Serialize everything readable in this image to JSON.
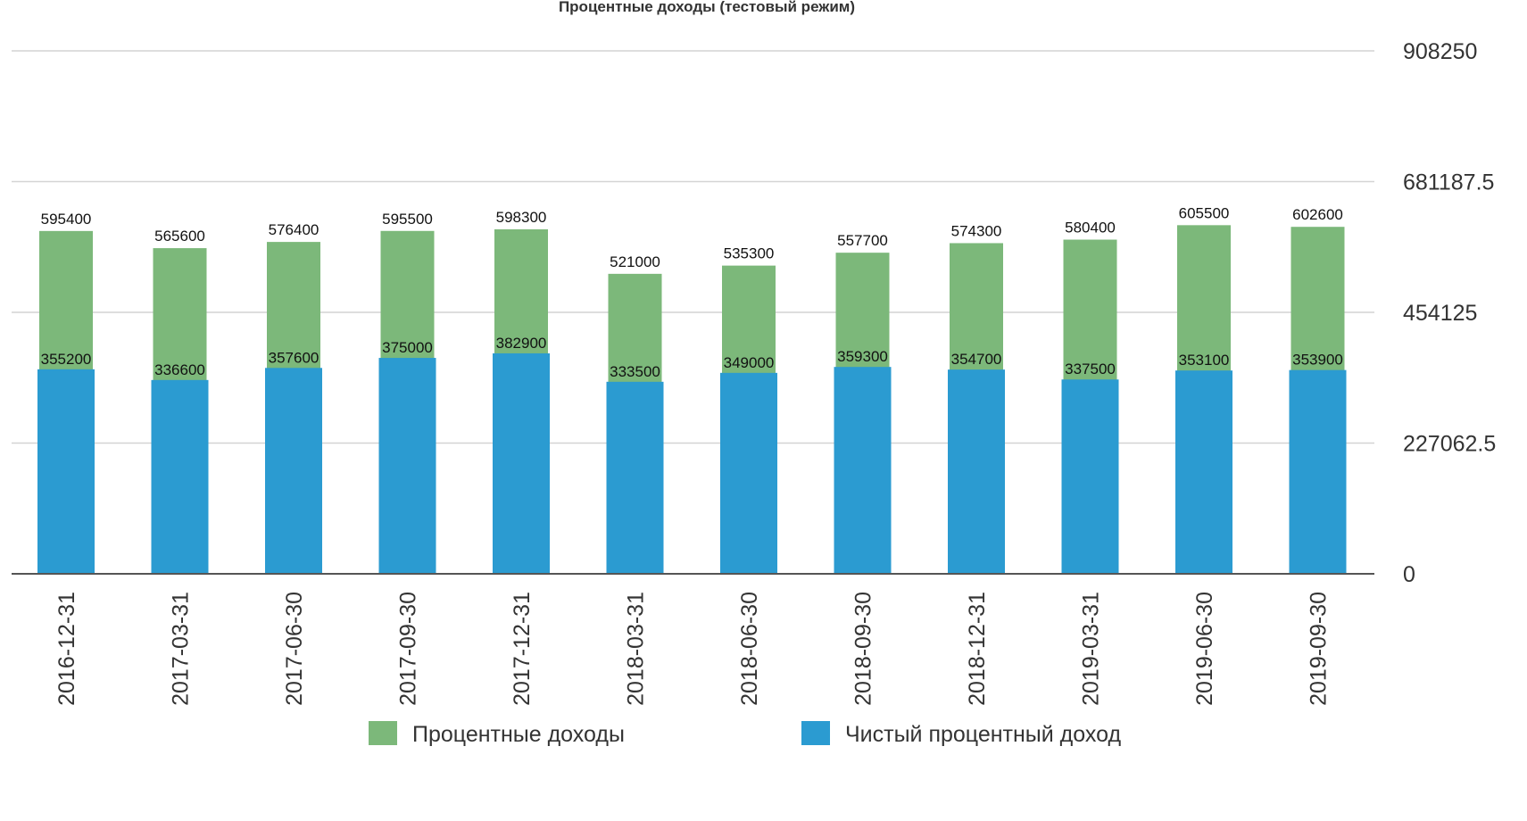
{
  "chart_data": {
    "type": "bar",
    "title": "Процентные доходы (тестовый режим)",
    "categories": [
      "2016-12-31",
      "2017-03-31",
      "2017-06-30",
      "2017-09-30",
      "2017-12-31",
      "2018-03-31",
      "2018-06-30",
      "2018-09-30",
      "2018-12-31",
      "2019-03-31",
      "2019-06-30",
      "2019-09-30"
    ],
    "series": [
      {
        "name": "Процентные доходы",
        "color": "#7cb87a",
        "values": [
          595400,
          565600,
          576400,
          595500,
          598300,
          521000,
          535300,
          557700,
          574300,
          580400,
          605500,
          602600
        ]
      },
      {
        "name": "Чистый процентный доход",
        "color": "#2b9bd1",
        "values": [
          355200,
          336600,
          357600,
          375000,
          382900,
          333500,
          349000,
          359300,
          354700,
          337500,
          353100,
          353900
        ]
      }
    ],
    "y_ticks": [
      "0",
      "227062.5",
      "454125",
      "681187.5",
      "908250"
    ],
    "ylim": [
      0,
      908250
    ],
    "y_axis_side": "right",
    "grid": true,
    "legend_position": "bottom"
  }
}
